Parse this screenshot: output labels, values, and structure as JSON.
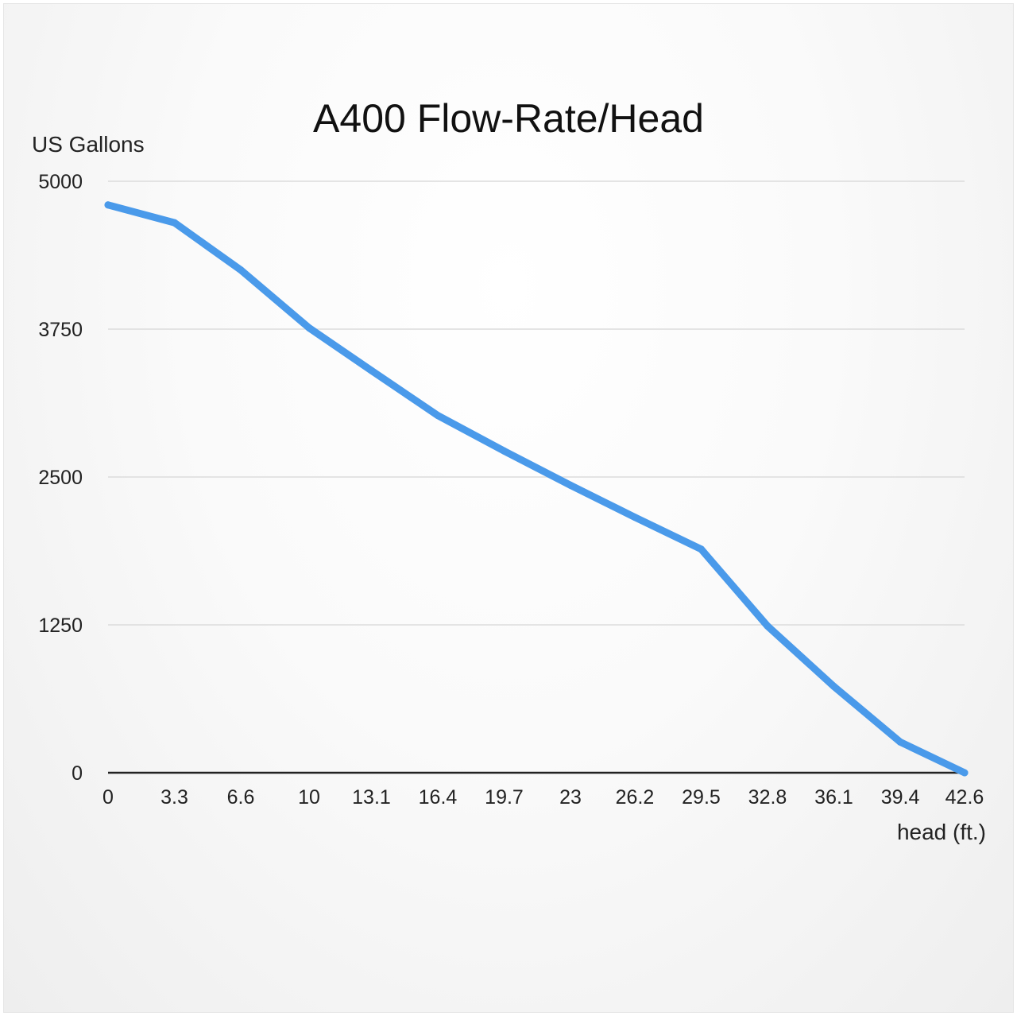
{
  "chart_data": {
    "type": "line",
    "title": "A400 Flow-Rate/Head",
    "xlabel": "head (ft.)",
    "ylabel": "US Gallons",
    "categories": [
      "0",
      "3.3",
      "6.6",
      "10",
      "13.1",
      "16.4",
      "19.7",
      "23",
      "26.2",
      "29.5",
      "32.8",
      "36.1",
      "39.4",
      "42.6"
    ],
    "x": [
      0,
      3.3,
      6.6,
      10,
      13.1,
      16.4,
      19.7,
      23,
      26.2,
      29.5,
      32.8,
      36.1,
      39.4,
      42.6
    ],
    "y_ticks": [
      "0",
      "1250",
      "2500",
      "3750",
      "5000"
    ],
    "ylim": [
      0,
      5000
    ],
    "grid": true,
    "legend": "none",
    "series": [
      {
        "values": [
          4800,
          4650,
          4250,
          3760,
          3400,
          3020,
          2720,
          2430,
          2160,
          1890,
          1240,
          730,
          260,
          0
        ],
        "color": "#4a9aea"
      }
    ]
  }
}
